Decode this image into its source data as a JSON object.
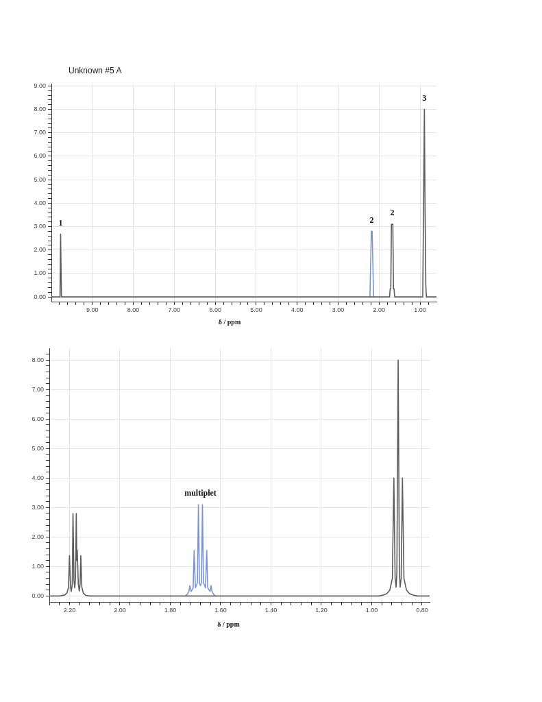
{
  "chart_data": [
    {
      "type": "line",
      "title": "Unknown #5 A",
      "xlabel": "δ / ppm",
      "xlim": [
        10.0,
        0.6
      ],
      "ylim": [
        -0.2,
        9.1
      ],
      "grid": true,
      "xticks": [
        {
          "value": 9.8,
          "label": null
        },
        {
          "value": 9.6,
          "label": null
        },
        {
          "value": 9.4,
          "label": null
        },
        {
          "value": 9.2,
          "label": null
        },
        {
          "value": 9,
          "label": "9.00"
        },
        {
          "value": 8.8,
          "label": null
        },
        {
          "value": 8.6,
          "label": null
        },
        {
          "value": 8.4,
          "label": null
        },
        {
          "value": 8.2,
          "label": null
        },
        {
          "value": 8,
          "label": "8.00"
        },
        {
          "value": 7.8,
          "label": null
        },
        {
          "value": 7.6,
          "label": null
        },
        {
          "value": 7.4,
          "label": null
        },
        {
          "value": 7.2,
          "label": null
        },
        {
          "value": 7,
          "label": "7.00"
        },
        {
          "value": 6.8,
          "label": null
        },
        {
          "value": 6.6,
          "label": null
        },
        {
          "value": 6.4,
          "label": null
        },
        {
          "value": 6.2,
          "label": null
        },
        {
          "value": 6,
          "label": "6.00"
        },
        {
          "value": 5.8,
          "label": null
        },
        {
          "value": 5.6,
          "label": null
        },
        {
          "value": 5.4,
          "label": null
        },
        {
          "value": 5.2,
          "label": null
        },
        {
          "value": 5,
          "label": "5.00"
        },
        {
          "value": 4.8,
          "label": null
        },
        {
          "value": 4.6,
          "label": null
        },
        {
          "value": 4.4,
          "label": null
        },
        {
          "value": 4.2,
          "label": null
        },
        {
          "value": 4,
          "label": "4.00"
        },
        {
          "value": 3.8,
          "label": null
        },
        {
          "value": 3.6,
          "label": null
        },
        {
          "value": 3.4,
          "label": null
        },
        {
          "value": 3.2,
          "label": null
        },
        {
          "value": 3,
          "label": "3.00"
        },
        {
          "value": 2.8,
          "label": null
        },
        {
          "value": 2.6,
          "label": null
        },
        {
          "value": 2.4,
          "label": null
        },
        {
          "value": 2.2,
          "label": null
        },
        {
          "value": 2,
          "label": "2.00"
        },
        {
          "value": 1.8,
          "label": null
        },
        {
          "value": 1.6,
          "label": null
        },
        {
          "value": 1.4,
          "label": null
        },
        {
          "value": 1.2,
          "label": null
        },
        {
          "value": 1,
          "label": "1.00"
        },
        {
          "value": 0.8,
          "label": null
        }
      ],
      "yticks": [
        {
          "value": 0,
          "label": "0.00"
        },
        {
          "value": 0.2,
          "label": null
        },
        {
          "value": 0.4,
          "label": null
        },
        {
          "value": 0.6,
          "label": null
        },
        {
          "value": 0.8,
          "label": null
        },
        {
          "value": 1,
          "label": "1.00"
        },
        {
          "value": 1.2,
          "label": null
        },
        {
          "value": 1.4,
          "label": null
        },
        {
          "value": 1.6,
          "label": null
        },
        {
          "value": 1.8,
          "label": null
        },
        {
          "value": 2,
          "label": "2.00"
        },
        {
          "value": 2.2,
          "label": null
        },
        {
          "value": 2.4,
          "label": null
        },
        {
          "value": 2.6,
          "label": null
        },
        {
          "value": 2.8,
          "label": null
        },
        {
          "value": 3,
          "label": "3.00"
        },
        {
          "value": 3.2,
          "label": null
        },
        {
          "value": 3.4,
          "label": null
        },
        {
          "value": 3.6,
          "label": null
        },
        {
          "value": 3.8,
          "label": null
        },
        {
          "value": 4,
          "label": "4.00"
        },
        {
          "value": 4.2,
          "label": null
        },
        {
          "value": 4.4,
          "label": null
        },
        {
          "value": 4.6,
          "label": null
        },
        {
          "value": 4.8,
          "label": null
        },
        {
          "value": 5,
          "label": "5.00"
        },
        {
          "value": 5.2,
          "label": null
        },
        {
          "value": 5.4,
          "label": null
        },
        {
          "value": 5.6,
          "label": null
        },
        {
          "value": 5.8,
          "label": null
        },
        {
          "value": 6,
          "label": "6.00"
        },
        {
          "value": 6.2,
          "label": null
        },
        {
          "value": 6.4,
          "label": null
        },
        {
          "value": 6.6,
          "label": null
        },
        {
          "value": 6.8,
          "label": null
        },
        {
          "value": 7,
          "label": "7.00"
        },
        {
          "value": 7.2,
          "label": null
        },
        {
          "value": 7.4,
          "label": null
        },
        {
          "value": 7.6,
          "label": null
        },
        {
          "value": 7.8,
          "label": null
        },
        {
          "value": 8,
          "label": "8.00"
        },
        {
          "value": 8.2,
          "label": null
        },
        {
          "value": 8.4,
          "label": null
        },
        {
          "value": 8.6,
          "label": null
        },
        {
          "value": 8.8,
          "label": null
        },
        {
          "value": 9,
          "label": "9.00"
        }
      ],
      "series": [
        {
          "color": "#5c5c5c",
          "x": [
            10.0,
            9.79,
            9.775,
            9.755,
            1.745,
            1.73,
            1.715,
            1.7,
            1.665,
            1.65,
            1.635,
            1.62,
            0.935,
            0.895,
            0.88,
            0.87,
            0.86,
            0.845,
            0.6
          ],
          "values": [
            0,
            0,
            2.68,
            0,
            0,
            0.35,
            0.35,
            3.1,
            3.1,
            0.35,
            0.35,
            0,
            0,
            8.0,
            4.0,
            4.0,
            0.5,
            0,
            0
          ]
        },
        {
          "color": "#7f94c8",
          "x": [
            2.225,
            2.19,
            2.17,
            2.135
          ],
          "values": [
            0,
            2.8,
            2.8,
            0
          ]
        }
      ],
      "annotations": [
        {
          "text": "1",
          "x": 9.775,
          "y": 2.68
        },
        {
          "text": "2",
          "x": 2.18,
          "y": 2.8
        },
        {
          "text": "2",
          "x": 1.68,
          "y": 3.1
        },
        {
          "text": "3",
          "x": 0.895,
          "y": 8.0
        }
      ]
    },
    {
      "type": "line",
      "xlabel": "δ / ppm",
      "xlim": [
        2.28,
        0.77
      ],
      "ylim": [
        -0.2,
        8.4
      ],
      "grid": true,
      "xticks": [
        {
          "value": 2.28,
          "label": null
        },
        {
          "value": 2.24,
          "label": null
        },
        {
          "value": 2.2,
          "label": "2.20"
        },
        {
          "value": 2.16,
          "label": null
        },
        {
          "value": 2.12,
          "label": null
        },
        {
          "value": 2.08,
          "label": null
        },
        {
          "value": 2.04,
          "label": null
        },
        {
          "value": 2,
          "label": "2.00"
        },
        {
          "value": 1.96,
          "label": null
        },
        {
          "value": 1.92,
          "label": null
        },
        {
          "value": 1.88,
          "label": null
        },
        {
          "value": 1.84,
          "label": null
        },
        {
          "value": 1.8,
          "label": "1.80"
        },
        {
          "value": 1.76,
          "label": null
        },
        {
          "value": 1.72,
          "label": null
        },
        {
          "value": 1.68,
          "label": null
        },
        {
          "value": 1.64,
          "label": null
        },
        {
          "value": 1.6,
          "label": "1.60"
        },
        {
          "value": 1.56,
          "label": null
        },
        {
          "value": 1.52,
          "label": null
        },
        {
          "value": 1.48,
          "label": null
        },
        {
          "value": 1.44,
          "label": null
        },
        {
          "value": 1.4,
          "label": "1.40"
        },
        {
          "value": 1.36,
          "label": null
        },
        {
          "value": 1.32,
          "label": null
        },
        {
          "value": 1.28,
          "label": null
        },
        {
          "value": 1.24,
          "label": null
        },
        {
          "value": 1.2,
          "label": "1.20"
        },
        {
          "value": 1.16,
          "label": null
        },
        {
          "value": 1.12,
          "label": null
        },
        {
          "value": 1.08,
          "label": null
        },
        {
          "value": 1.04,
          "label": null
        },
        {
          "value": 1,
          "label": "1.00"
        },
        {
          "value": 0.96,
          "label": null
        },
        {
          "value": 0.92,
          "label": null
        },
        {
          "value": 0.88,
          "label": null
        },
        {
          "value": 0.84,
          "label": null
        },
        {
          "value": 0.8,
          "label": "0.80"
        }
      ],
      "yticks": [
        {
          "value": 0,
          "label": "0.00"
        },
        {
          "value": 0.2,
          "label": null
        },
        {
          "value": 0.4,
          "label": null
        },
        {
          "value": 0.6,
          "label": null
        },
        {
          "value": 0.8,
          "label": null
        },
        {
          "value": 1,
          "label": "1.00"
        },
        {
          "value": 1.2,
          "label": null
        },
        {
          "value": 1.4,
          "label": null
        },
        {
          "value": 1.6,
          "label": null
        },
        {
          "value": 1.8,
          "label": null
        },
        {
          "value": 2,
          "label": "2.00"
        },
        {
          "value": 2.2,
          "label": null
        },
        {
          "value": 2.4,
          "label": null
        },
        {
          "value": 2.6,
          "label": null
        },
        {
          "value": 2.8,
          "label": null
        },
        {
          "value": 3,
          "label": "3.00"
        },
        {
          "value": 3.2,
          "label": null
        },
        {
          "value": 3.4,
          "label": null
        },
        {
          "value": 3.6,
          "label": null
        },
        {
          "value": 3.8,
          "label": null
        },
        {
          "value": 4,
          "label": "4.00"
        },
        {
          "value": 4.2,
          "label": null
        },
        {
          "value": 4.4,
          "label": null
        },
        {
          "value": 4.6,
          "label": null
        },
        {
          "value": 4.8,
          "label": null
        },
        {
          "value": 5,
          "label": "5.00"
        },
        {
          "value": 5.2,
          "label": null
        },
        {
          "value": 5.4,
          "label": null
        },
        {
          "value": 5.6,
          "label": null
        },
        {
          "value": 5.8,
          "label": null
        },
        {
          "value": 6,
          "label": "6.00"
        },
        {
          "value": 6.2,
          "label": null
        },
        {
          "value": 6.4,
          "label": null
        },
        {
          "value": 6.6,
          "label": null
        },
        {
          "value": 6.8,
          "label": null
        },
        {
          "value": 7,
          "label": "7.00"
        },
        {
          "value": 7.2,
          "label": null
        },
        {
          "value": 7.4,
          "label": null
        },
        {
          "value": 7.6,
          "label": null
        },
        {
          "value": 7.8,
          "label": null
        },
        {
          "value": 8,
          "label": "8.00"
        },
        {
          "value": 8.2,
          "label": null
        }
      ],
      "series": [
        {
          "color": "#5c5c5c",
          "x": [
            2.28,
            2.24,
            2.22,
            2.21,
            2.204,
            2.2,
            2.196,
            2.193,
            2.189,
            2.186,
            2.182,
            2.179,
            2.176,
            2.173,
            2.171,
            2.169,
            2.165,
            2.161,
            2.158,
            2.155,
            2.151,
            2.145,
            2.135,
            2.12,
            0.97,
            0.955,
            0.94,
            0.928,
            0.918,
            0.912,
            0.907,
            0.903,
            0.9,
            0.895,
            0.89,
            0.887,
            0.883,
            0.878,
            0.872,
            0.862,
            0.85,
            0.835,
            0.82,
            0.77
          ],
          "values": [
            0,
            0,
            0.03,
            0.1,
            0.3,
            1.37,
            0.3,
            0.15,
            0.4,
            2.8,
            0.5,
            0.28,
            0.6,
            2.8,
            1.2,
            1.55,
            0.4,
            0.17,
            0.4,
            1.37,
            0.3,
            0.1,
            0.02,
            0,
            0,
            0.03,
            0.08,
            0.2,
            0.6,
            4.0,
            0.6,
            0.3,
            0.8,
            8.0,
            0.8,
            0.3,
            0.6,
            4.0,
            0.6,
            0.2,
            0.08,
            0.03,
            0,
            0
          ]
        },
        {
          "color": "#7f94c8",
          "x": [
            1.74,
            1.732,
            1.726,
            1.722,
            1.717,
            1.709,
            1.705,
            1.7,
            1.692,
            1.688,
            1.684,
            1.68,
            1.676,
            1.672,
            1.668,
            1.66,
            1.655,
            1.651,
            1.642,
            1.638,
            1.634,
            1.628,
            1.62
          ],
          "values": [
            0,
            0.06,
            0.15,
            0.35,
            0.15,
            0.28,
            1.55,
            0.28,
            0.45,
            3.1,
            0.45,
            0.35,
            0.45,
            3.1,
            0.45,
            0.28,
            1.55,
            0.28,
            0.15,
            0.35,
            0.15,
            0.06,
            0
          ]
        }
      ],
      "annotations": [
        {
          "text": "multiplet",
          "x": 1.68,
          "y": 3.1
        }
      ]
    }
  ]
}
